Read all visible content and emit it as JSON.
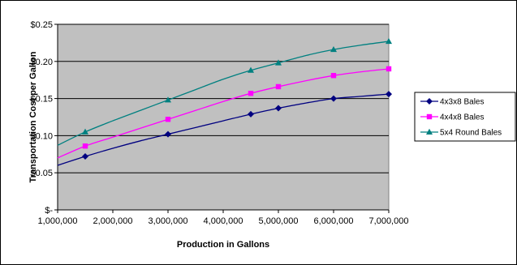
{
  "chart_data": {
    "type": "line",
    "xlabel": "Production in Gallons",
    "ylabel": "Transportation Cost per Gallon",
    "xlim": [
      1000000,
      7000000
    ],
    "ylim": [
      0,
      0.25
    ],
    "x_ticks": [
      1000000,
      2000000,
      3000000,
      4000000,
      5000000,
      6000000,
      7000000
    ],
    "x_tick_labels": [
      "1,000,000",
      "2,000,000",
      "3,000,000",
      "4,000,000",
      "5,000,000",
      "6,000,000",
      "7,000,000"
    ],
    "y_ticks": [
      0,
      0.05,
      0.1,
      0.15,
      0.2,
      0.25
    ],
    "y_tick_labels": [
      "$-",
      "$0.05",
      "$0.10",
      "$0.15",
      "$0.20",
      "$0.25"
    ],
    "grid": true,
    "plot_background": "#c0c0c0",
    "legend_position": "right",
    "series": [
      {
        "name": "4x3x8 Bales",
        "color": "#000080",
        "marker": "diamond",
        "x": [
          1500000,
          3000000,
          4500000,
          5000000,
          6000000,
          7000000
        ],
        "y": [
          0.072,
          0.102,
          0.129,
          0.137,
          0.15,
          0.156
        ],
        "curve_x": [
          1000000,
          1500000,
          2000000,
          2500000,
          3000000,
          3500000,
          4000000,
          4500000,
          5000000,
          5500000,
          6000000,
          6500000,
          7000000
        ],
        "curve_y": [
          0.06,
          0.072,
          0.083,
          0.093,
          0.102,
          0.111,
          0.12,
          0.129,
          0.137,
          0.144,
          0.15,
          0.153,
          0.156
        ]
      },
      {
        "name": "4x4x8 Bales",
        "color": "#ff00ff",
        "marker": "square",
        "x": [
          1500000,
          3000000,
          4500000,
          5000000,
          6000000,
          7000000
        ],
        "y": [
          0.086,
          0.122,
          0.157,
          0.166,
          0.181,
          0.19
        ],
        "curve_x": [
          1000000,
          1500000,
          2000000,
          2500000,
          3000000,
          3500000,
          4000000,
          4500000,
          5000000,
          5500000,
          6000000,
          6500000,
          7000000
        ],
        "curve_y": [
          0.07,
          0.086,
          0.098,
          0.11,
          0.122,
          0.134,
          0.146,
          0.157,
          0.166,
          0.174,
          0.181,
          0.186,
          0.19
        ]
      },
      {
        "name": "5x4 Round Bales",
        "color": "#008080",
        "marker": "triangle",
        "x": [
          1500000,
          3000000,
          4500000,
          5000000,
          6000000,
          7000000
        ],
        "y": [
          0.105,
          0.148,
          0.188,
          0.198,
          0.216,
          0.227
        ],
        "curve_x": [
          1000000,
          1500000,
          2000000,
          2500000,
          3000000,
          3500000,
          4000000,
          4500000,
          5000000,
          5500000,
          6000000,
          6500000,
          7000000
        ],
        "curve_y": [
          0.087,
          0.105,
          0.12,
          0.134,
          0.148,
          0.162,
          0.176,
          0.188,
          0.198,
          0.208,
          0.216,
          0.222,
          0.227
        ]
      }
    ]
  }
}
